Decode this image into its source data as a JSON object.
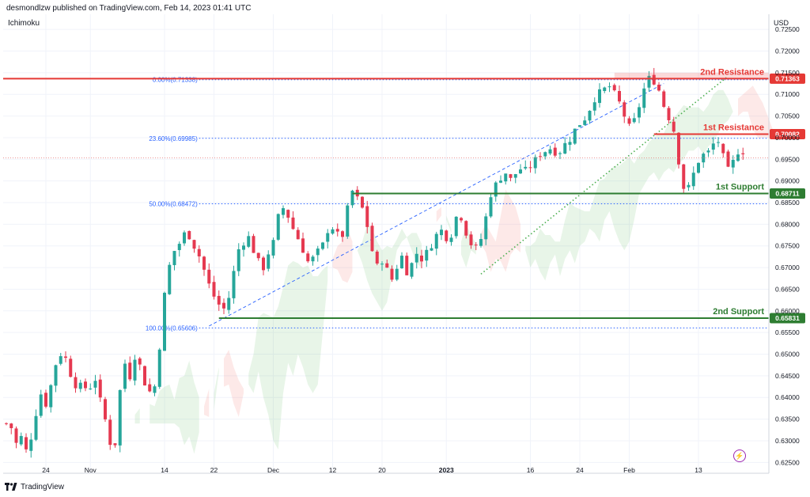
{
  "header": {
    "publisher": "desmondlzw published on TradingView.com, Feb 14, 2023 01:41 UTC",
    "indicator": "Ichimoku",
    "currency": "USD",
    "brand": "TradingView"
  },
  "chart_data": {
    "type": "candlestick",
    "y_ticks": [
      "0.72500",
      "0.72000",
      "0.71500",
      "0.71000",
      "0.70500",
      "0.70000",
      "0.69500",
      "0.69000",
      "0.68500",
      "0.68000",
      "0.67500",
      "0.67000",
      "0.66500",
      "0.66000",
      "0.65500",
      "0.65000",
      "0.64500",
      "0.64000",
      "0.63500",
      "0.63000",
      "0.62500"
    ],
    "y_tick_values": [
      0.725,
      0.72,
      0.715,
      0.71,
      0.705,
      0.7,
      0.695,
      0.69,
      0.685,
      0.68,
      0.675,
      0.67,
      0.665,
      0.66,
      0.655,
      0.65,
      0.645,
      0.64,
      0.635,
      0.63,
      0.625
    ],
    "ylim": [
      0.6225,
      0.7285
    ],
    "x_ticks": [
      {
        "label": "24",
        "i": 8
      },
      {
        "label": "Nov",
        "i": 17
      },
      {
        "label": "14",
        "i": 32
      },
      {
        "label": "22",
        "i": 42
      },
      {
        "label": "Dec",
        "i": 54
      },
      {
        "label": "12",
        "i": 66
      },
      {
        "label": "20",
        "i": 76
      },
      {
        "label": "2023",
        "i": 89
      },
      {
        "label": "16",
        "i": 106
      },
      {
        "label": "24",
        "i": 116
      },
      {
        "label": "Feb",
        "i": 126
      },
      {
        "label": "13",
        "i": 140
      }
    ],
    "x_count": 150,
    "fib_levels": [
      {
        "label": "0.00%(0.71338)",
        "value": 0.71338
      },
      {
        "label": "23.60%(0.69985)",
        "value": 0.69985
      },
      {
        "label": "50.00%(0.68472)",
        "value": 0.68472
      },
      {
        "label": "100.00%(0.65606)",
        "value": 0.65606
      }
    ],
    "levels": [
      {
        "name": "2nd Resistance",
        "value": 0.71363,
        "price_label": "0.71363",
        "color": "#e53935"
      },
      {
        "name": "1st Resistance",
        "value": 0.70082,
        "price_label": "0.70082",
        "color": "#e53935"
      },
      {
        "name": "1st Support",
        "value": 0.68711,
        "price_label": "0.68711",
        "color": "#2e7d32"
      },
      {
        "name": "2nd Support",
        "value": 0.65831,
        "price_label": "0.65831",
        "color": "#2e7d32"
      }
    ],
    "current_price": 0.6953,
    "up_color": "#26a69a",
    "down_color": "#e53950",
    "close_path": [
      0.634,
      0.633,
      0.629,
      0.631,
      0.627,
      0.632,
      0.638,
      0.642,
      0.637,
      0.646,
      0.649,
      0.651,
      0.647,
      0.644,
      0.642,
      0.643,
      0.641,
      0.646,
      0.64,
      0.636,
      0.63,
      0.628,
      0.641,
      0.648,
      0.645,
      0.65,
      0.647,
      0.643,
      0.641,
      0.643,
      0.655,
      0.667,
      0.672,
      0.675,
      0.676,
      0.679,
      0.676,
      0.674,
      0.671,
      0.667,
      0.664,
      0.662,
      0.66,
      0.662,
      0.668,
      0.674,
      0.676,
      0.677,
      0.674,
      0.671,
      0.67,
      0.674,
      0.676,
      0.683,
      0.684,
      0.681,
      0.678,
      0.676,
      0.673,
      0.67,
      0.674,
      0.673,
      0.678,
      0.68,
      0.678,
      0.676,
      0.682,
      0.688,
      0.686,
      0.684,
      0.68,
      0.674,
      0.67,
      0.672,
      0.669,
      0.667,
      0.671,
      0.673,
      0.668,
      0.672,
      0.674,
      0.671,
      0.675,
      0.676,
      0.679,
      0.678,
      0.676,
      0.681,
      0.683,
      0.679,
      0.676,
      0.674,
      0.676,
      0.681,
      0.687,
      0.689,
      0.691,
      0.692,
      0.69,
      0.692,
      0.693,
      0.692,
      0.694,
      0.695,
      0.697,
      0.697,
      0.698,
      0.696,
      0.698,
      0.699,
      0.701,
      0.703,
      0.704,
      0.706,
      0.709,
      0.71,
      0.711,
      0.712,
      0.71,
      0.708,
      0.705,
      0.702,
      0.704,
      0.708,
      0.712,
      0.714,
      0.713,
      0.71,
      0.706,
      0.704,
      0.7,
      0.69,
      0.687,
      0.69,
      0.694,
      0.696,
      0.696,
      0.698,
      0.7,
      0.696,
      0.692,
      0.694,
      0.697,
      0.697
    ]
  }
}
